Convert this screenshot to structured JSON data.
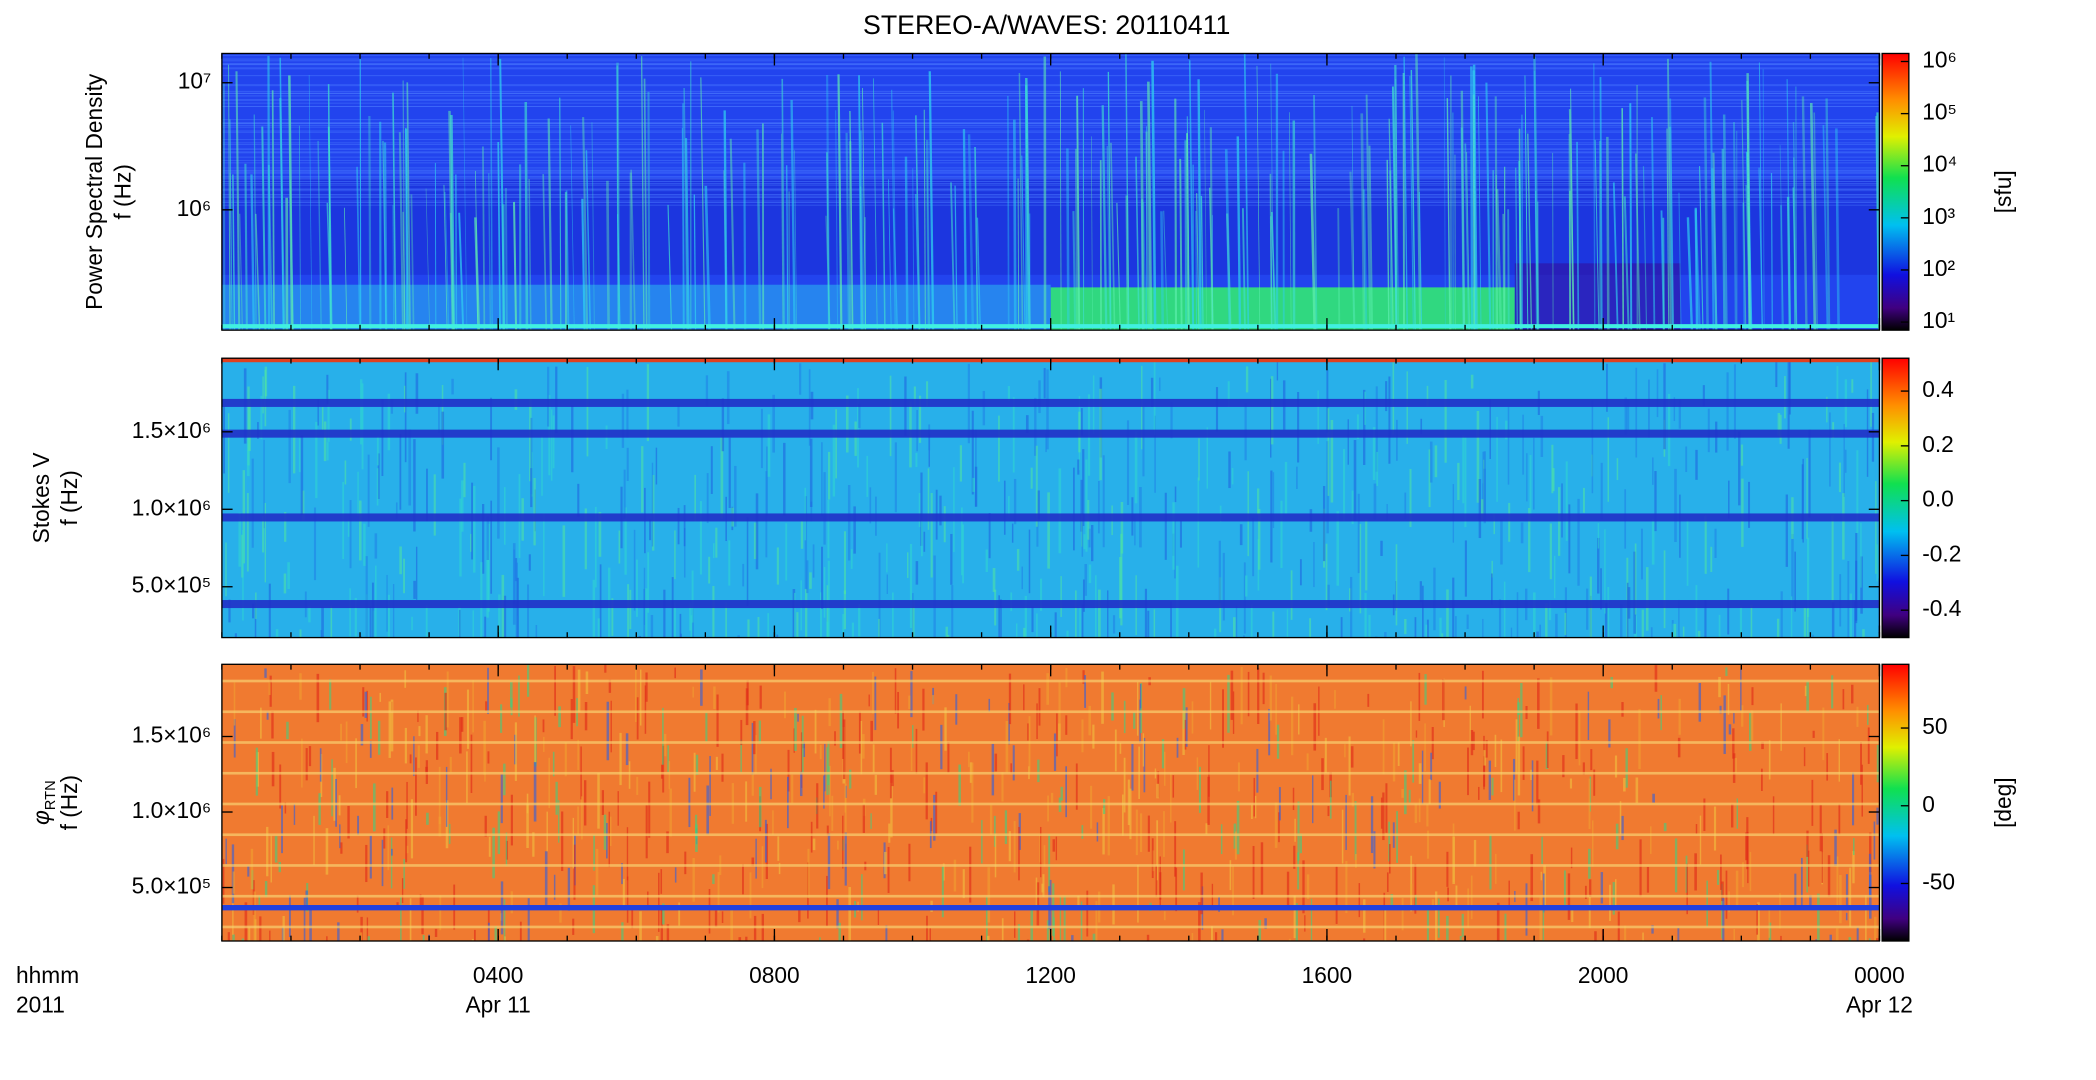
{
  "chart_data": [
    {
      "type": "spectrogram",
      "title": "STEREO-A/WAVES: 20110411",
      "ylabel": "Power Spectral Density",
      "ylabel2": "f (Hz)",
      "ylog": true,
      "ylim": [
        113000,
        17000000
      ],
      "yticks": [
        {
          "value": 1000000,
          "label": "10⁶"
        },
        {
          "value": 10000000,
          "label": "10⁷"
        }
      ],
      "xlim": [
        0,
        24
      ],
      "colorbar": {
        "log": true,
        "lim": [
          7,
          1426000
        ],
        "label": "[sfu]",
        "ticks": [
          {
            "value": 10,
            "label": "10¹"
          },
          {
            "value": 100,
            "label": "10²"
          },
          {
            "value": 1000,
            "label": "10³"
          },
          {
            "value": 10000,
            "label": "10⁴"
          },
          {
            "value": 100000,
            "label": "10⁵"
          },
          {
            "value": 1000000,
            "label": "10⁶"
          }
        ]
      }
    },
    {
      "type": "spectrogram",
      "ylabel": "Stokes V",
      "ylabel2": "f (Hz)",
      "ylim": [
        172000,
        1975000
      ],
      "yticks": [
        {
          "value": 500000,
          "label": "5.0×10⁵"
        },
        {
          "value": 1000000,
          "label": "1.0×10⁶"
        },
        {
          "value": 1500000,
          "label": "1.5×10⁶"
        }
      ],
      "xlim": [
        0,
        24
      ],
      "colorbar": {
        "lim": [
          -0.5,
          0.52
        ],
        "ticks": [
          -0.4,
          -0.2,
          {
            "value": 0,
            "label": "0.0"
          },
          0.2,
          0.4
        ]
      }
    },
    {
      "type": "spectrogram",
      "ylabel": "φ",
      "ylabel_sub": "RTN",
      "ylabel2": "f (Hz)",
      "ylim": [
        146000,
        1978000
      ],
      "yticks": [
        {
          "value": 500000,
          "label": "5.0×10⁵"
        },
        {
          "value": 1000000,
          "label": "1.0×10⁶"
        },
        {
          "value": 1500000,
          "label": "1.5×10⁶"
        }
      ],
      "xlim": [
        0,
        24
      ],
      "xticks": [
        {
          "value": 4,
          "label": "0400"
        },
        {
          "value": 8,
          "label": "0800"
        },
        {
          "value": 12,
          "label": "1200"
        },
        {
          "value": 16,
          "label": "1600"
        },
        {
          "value": 20,
          "label": "2000"
        },
        {
          "value": 24,
          "label": "0000"
        }
      ],
      "xtick_dates": [
        "Apr 11",
        null,
        null,
        null,
        null,
        "Apr 12"
      ],
      "xlabel": "hhmm",
      "xlabel2": "2011",
      "colorbar": {
        "lim": [
          -87,
          91
        ],
        "label": "[deg]",
        "ticks": [
          -50,
          0,
          50
        ]
      }
    }
  ]
}
